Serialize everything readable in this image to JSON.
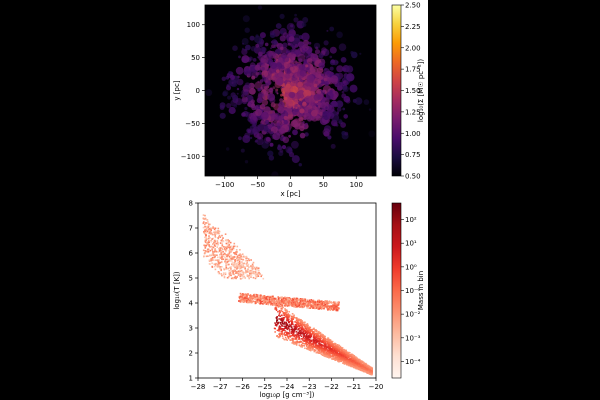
{
  "colors": {
    "page_background": "#000000",
    "figure_background": "#ffffff",
    "inferno_stops": [
      "#000004",
      "#1b0c41",
      "#4a0c6b",
      "#781c6d",
      "#a52c60",
      "#cf4446",
      "#ed6925",
      "#fb9b06",
      "#f7d13d",
      "#fcffa4"
    ],
    "reds_stops": [
      "#fff5f0",
      "#fee0d2",
      "#fcbba1",
      "#fc9272",
      "#fb6a4a",
      "#ef3b2c",
      "#cb181d",
      "#a50f15",
      "#67000d"
    ]
  },
  "chart_data": [
    {
      "type": "heatmap",
      "title": "",
      "xlabel": "x [pc]",
      "ylabel": "y [pc]",
      "xlim": [
        -130,
        130
      ],
      "ylim": [
        -130,
        130
      ],
      "xticks": [
        "−100",
        "−50",
        "0",
        "50",
        "100"
      ],
      "xtick_values": [
        -100,
        -50,
        0,
        50,
        100
      ],
      "yticks": [
        "−100",
        "−50",
        "0",
        "50",
        "100"
      ],
      "ytick_values": [
        -100,
        -50,
        0,
        50,
        100
      ],
      "colormap": "inferno",
      "colorbar": {
        "label": "log₁₀(Σ [M☉ pc⁻²])",
        "range": [
          0.5,
          2.5
        ],
        "ticks": [
          "0.50",
          "0.75",
          "1.00",
          "1.25",
          "1.50",
          "1.75",
          "2.00",
          "2.25",
          "2.50"
        ],
        "tick_values": [
          0.5,
          0.75,
          1.0,
          1.25,
          1.5,
          1.75,
          2.0,
          2.25,
          2.5
        ]
      },
      "value_range_shown": [
        0.5,
        1.7
      ],
      "grid": false
    },
    {
      "type": "heatmap",
      "title": "",
      "xlabel": "log₁₀ρ [g cm⁻³])",
      "ylabel": "log₁₀(T [K])",
      "xlim": [
        -28,
        -20
      ],
      "ylim": [
        1,
        8
      ],
      "xticks": [
        "−28",
        "−27",
        "−26",
        "−25",
        "−24",
        "−23",
        "−22",
        "−21",
        "−20"
      ],
      "xtick_values": [
        -28,
        -27,
        -26,
        -25,
        -24,
        -23,
        -22,
        -21,
        -20
      ],
      "yticks": [
        "1",
        "2",
        "3",
        "4",
        "5",
        "6",
        "7",
        "8"
      ],
      "ytick_values": [
        1,
        2,
        3,
        4,
        5,
        6,
        7,
        8
      ],
      "colormap": "Reds (log)",
      "colorbar": {
        "label": "Mass in bin",
        "scale": "log",
        "range_exponent": [
          -4.7,
          2.7
        ],
        "ticks": [
          "10²",
          "10¹",
          "10⁰",
          "10⁻¹",
          "10⁻²",
          "10⁻³",
          "10⁻⁴"
        ],
        "tick_exponents": [
          2,
          1,
          0,
          -1,
          -2,
          -3,
          -4
        ]
      },
      "distribution_regions": [
        {
          "description": "hot diffuse band",
          "rho": [
            -27.8,
            -25.2
          ],
          "logT": [
            5.2,
            7.6
          ]
        },
        {
          "description": "warm plateau",
          "rho": [
            -26.2,
            -21.8
          ],
          "logT": [
            3.7,
            4.4
          ]
        },
        {
          "description": "dense cooling tail",
          "rho": [
            -24.5,
            -20.2
          ],
          "logT": [
            1.2,
            3.9
          ]
        }
      ],
      "grid": false
    }
  ]
}
